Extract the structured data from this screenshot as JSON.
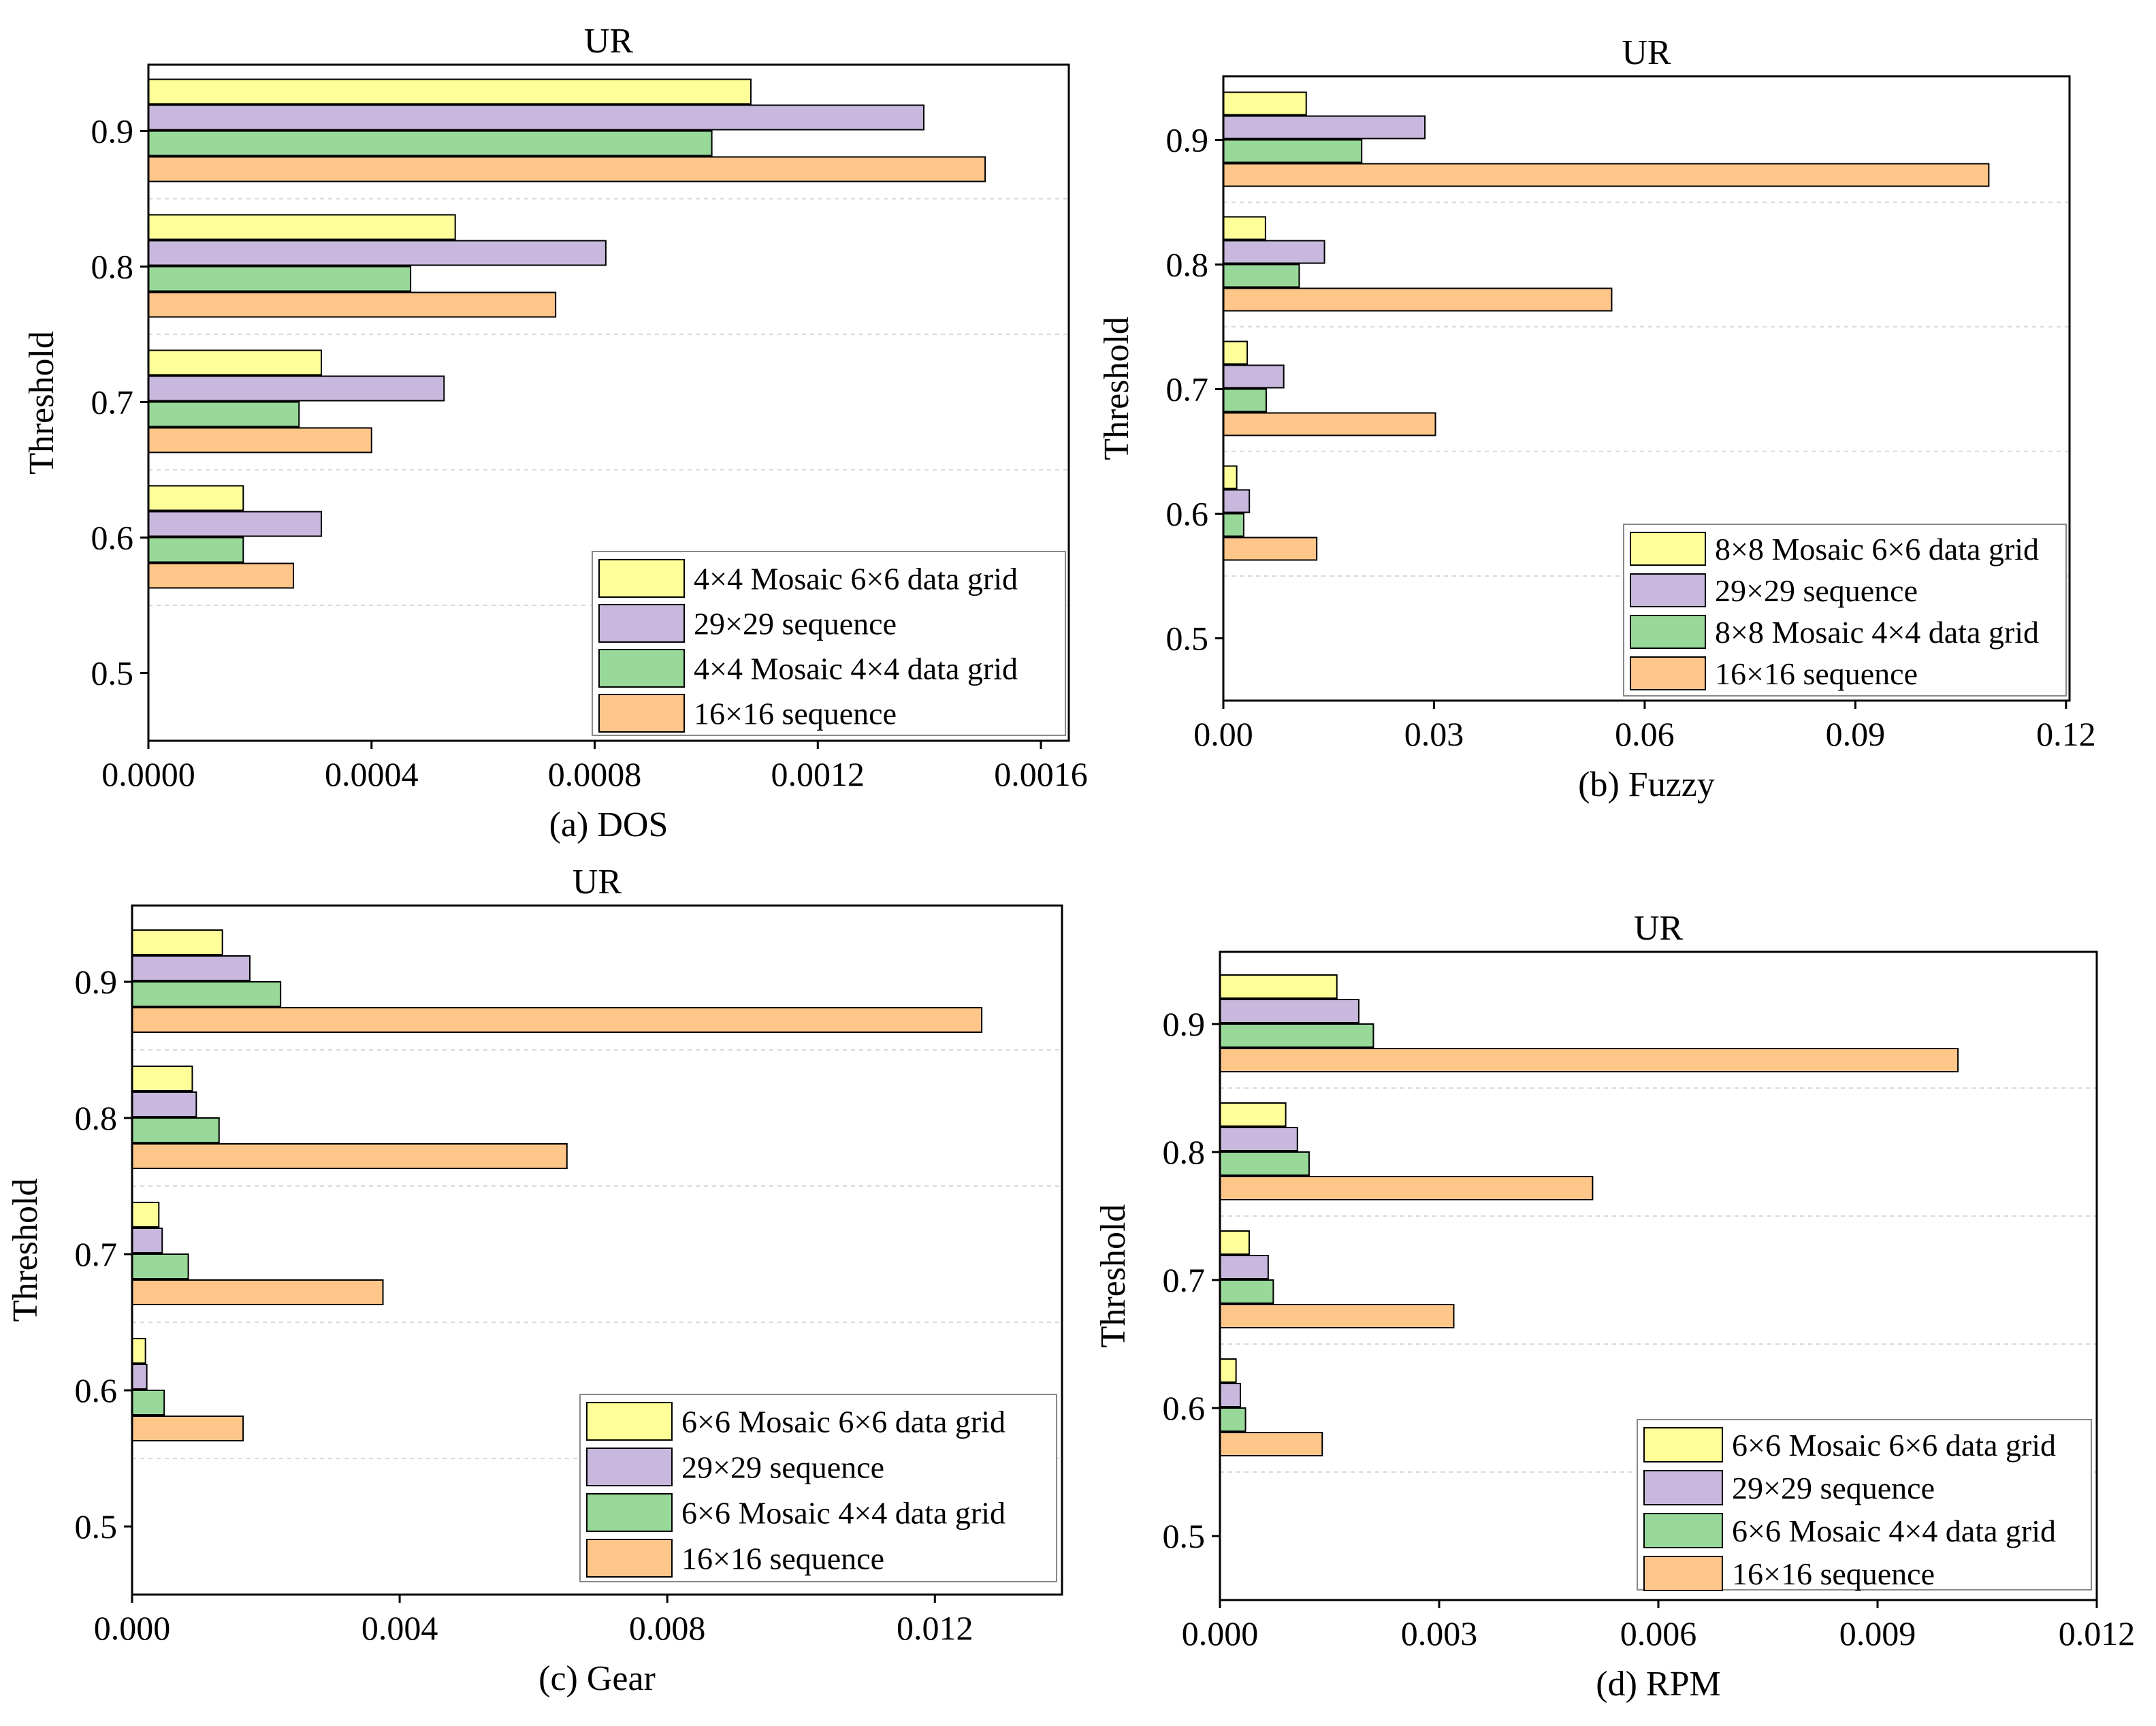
{
  "colors": {
    "series": [
      "#FFFF99",
      "#C9B8DE",
      "#98D99A",
      "#FFC68A"
    ],
    "stroke": "#000000",
    "grid": "#d9d9d9"
  },
  "chart_data": [
    {
      "type": "bar",
      "orientation": "horizontal",
      "title": "UR",
      "xlabel": "(a) DOS",
      "ylabel": "Threshold",
      "categories": [
        "0.5",
        "0.6",
        "0.7",
        "0.8",
        "0.9"
      ],
      "xlim": [
        0,
        0.00165
      ],
      "xticks": [
        "0.0000",
        "0.0004",
        "0.0008",
        "0.0012",
        "0.0016"
      ],
      "legend_position": "bottom-right",
      "series": [
        {
          "name": "4×4 Mosaic 6×6 data grid",
          "values": [
            0,
            0.00017,
            0.00031,
            0.00055,
            0.00108
          ]
        },
        {
          "name": "29×29 sequence",
          "values": [
            0,
            0.00031,
            0.00053,
            0.00082,
            0.00139
          ]
        },
        {
          "name": "4×4 Mosaic 4×4 data grid",
          "values": [
            0,
            0.00017,
            0.00027,
            0.00047,
            0.00101
          ]
        },
        {
          "name": "16×16 sequence",
          "values": [
            0,
            0.00026,
            0.0004,
            0.00073,
            0.0015
          ]
        }
      ]
    },
    {
      "type": "bar",
      "orientation": "horizontal",
      "title": "UR",
      "xlabel": "(b) Fuzzy",
      "ylabel": "Threshold",
      "categories": [
        "0.5",
        "0.6",
        "0.7",
        "0.8",
        "0.9"
      ],
      "xlim": [
        0,
        0.1205
      ],
      "xticks": [
        "0.00",
        "0.03",
        "0.06",
        "0.09",
        "0.12"
      ],
      "legend_position": "bottom-right",
      "series": [
        {
          "name": "8×8 Mosaic 6×6 data grid",
          "values": [
            0,
            0.0019,
            0.0034,
            0.006,
            0.0118
          ]
        },
        {
          "name": "29×29 sequence",
          "values": [
            0,
            0.0037,
            0.0086,
            0.0144,
            0.0287
          ]
        },
        {
          "name": "8×8 Mosaic 4×4 data grid",
          "values": [
            0,
            0.0029,
            0.0061,
            0.0108,
            0.0197
          ]
        },
        {
          "name": "16×16 sequence",
          "values": [
            0,
            0.0133,
            0.0302,
            0.0553,
            0.109
          ]
        }
      ]
    },
    {
      "type": "bar",
      "orientation": "horizontal",
      "title": "UR",
      "xlabel": "(c) Gear",
      "ylabel": "Threshold",
      "categories": [
        "0.5",
        "0.6",
        "0.7",
        "0.8",
        "0.9"
      ],
      "xlim": [
        0,
        0.0139
      ],
      "xticks": [
        "0.000",
        "0.004",
        "0.008",
        "0.012"
      ],
      "legend_position": "bottom-right",
      "series": [
        {
          "name": "6×6 Mosaic 6×6 data grid",
          "values": [
            0,
            0.0002,
            0.0004,
            0.0009,
            0.00135
          ]
        },
        {
          "name": "29×29 sequence",
          "values": [
            0,
            0.00022,
            0.00045,
            0.00096,
            0.00176
          ]
        },
        {
          "name": "6×6 Mosaic 4×4 data grid",
          "values": [
            0,
            0.00048,
            0.00084,
            0.0013,
            0.00222
          ]
        },
        {
          "name": "16×16 sequence",
          "values": [
            0,
            0.00166,
            0.00375,
            0.0065,
            0.0127
          ]
        }
      ]
    },
    {
      "type": "bar",
      "orientation": "horizontal",
      "title": "UR",
      "xlabel": "(d) RPM",
      "ylabel": "Threshold",
      "categories": [
        "0.5",
        "0.6",
        "0.7",
        "0.8",
        "0.9"
      ],
      "xlim": [
        0,
        0.012
      ],
      "xticks": [
        "0.000",
        "0.003",
        "0.006",
        "0.009",
        "0.012"
      ],
      "legend_position": "bottom-right",
      "series": [
        {
          "name": "6×6 Mosaic 6×6 data grid",
          "values": [
            0,
            0.00022,
            0.0004,
            0.0009,
            0.0016
          ]
        },
        {
          "name": "29×29 sequence",
          "values": [
            0,
            0.00028,
            0.00066,
            0.00106,
            0.0019
          ]
        },
        {
          "name": "6×6 Mosaic 4×4 data grid",
          "values": [
            0,
            0.00035,
            0.00073,
            0.00122,
            0.0021
          ]
        },
        {
          "name": "16×16 sequence",
          "values": [
            0,
            0.0014,
            0.0032,
            0.0051,
            0.0101
          ]
        }
      ]
    }
  ]
}
